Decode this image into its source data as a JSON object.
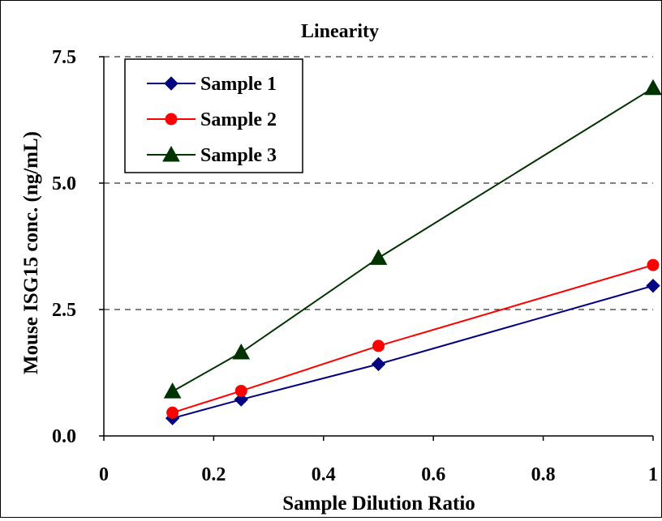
{
  "chart_data": {
    "type": "line",
    "title": "Linearity",
    "xlabel": "Sample Dilution Ratio",
    "ylabel": "Mouse ISG15 conc. (ng/mL)",
    "xlim": [
      0,
      1
    ],
    "ylim": [
      0,
      7.5
    ],
    "x_ticks": [
      "0",
      "0.2",
      "0.4",
      "0.6",
      "0.8",
      "1"
    ],
    "y_ticks": [
      "0.0",
      "2.5",
      "5.0",
      "7.5"
    ],
    "grid": "horizontal dashed",
    "legend_position": "top-left",
    "x": [
      0.125,
      0.25,
      0.5,
      1
    ],
    "series": [
      {
        "name": "Sample 1",
        "values": [
          0.35,
          0.72,
          1.42,
          2.97
        ],
        "color": "#000080",
        "marker": "diamond"
      },
      {
        "name": "Sample 2",
        "values": [
          0.46,
          0.89,
          1.78,
          3.38
        ],
        "color": "#ff0000",
        "marker": "circle"
      },
      {
        "name": "Sample 3",
        "values": [
          0.88,
          1.65,
          3.52,
          6.88
        ],
        "color": "#003300",
        "marker": "triangle"
      }
    ]
  }
}
